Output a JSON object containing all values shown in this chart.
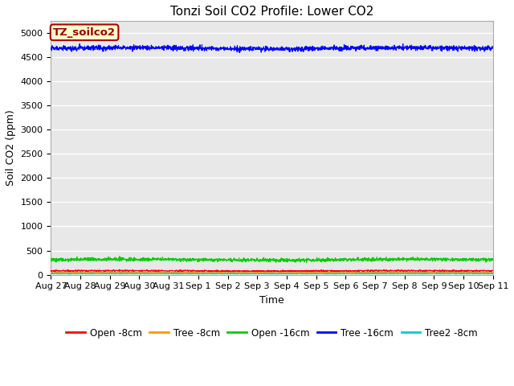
{
  "title": "Tonzi Soil CO2 Profile: Lower CO2",
  "ylabel": "Soil CO2 (ppm)",
  "xlabel": "Time",
  "watermark_text": "TZ_soilco2",
  "ylim": [
    0,
    5250
  ],
  "yticks": [
    0,
    500,
    1000,
    1500,
    2000,
    2500,
    3000,
    3500,
    4000,
    4500,
    5000
  ],
  "num_points": 2000,
  "series": {
    "open_8cm": {
      "label": "Open -8cm",
      "color": "#ff0000",
      "mean": 80,
      "noise": 8,
      "lw": 0.8
    },
    "tree_8cm": {
      "label": "Tree -8cm",
      "color": "#ff9900",
      "mean": 45,
      "noise": 5,
      "lw": 0.8
    },
    "open_16cm": {
      "label": "Open -16cm",
      "color": "#00cc00",
      "mean": 310,
      "noise": 18,
      "lw": 0.8
    },
    "tree_16cm": {
      "label": "Tree -16cm",
      "color": "#0000ff",
      "mean": 4680,
      "noise": 25,
      "lw": 0.8
    },
    "tree2_8cm": {
      "label": "Tree2 -8cm",
      "color": "#00cccc",
      "mean": 25,
      "noise": 4,
      "lw": 0.8
    }
  },
  "x_tick_labels": [
    "Aug 27",
    "Aug 28",
    "Aug 29",
    "Aug 30",
    "Aug 31",
    "Sep 1",
    "Sep 2",
    "Sep 3",
    "Sep 4",
    "Sep 5",
    "Sep 6",
    "Sep 7",
    "Sep 8",
    "Sep 9",
    "Sep 10",
    "Sep 11"
  ],
  "fig_facecolor": "#ffffff",
  "ax_facecolor": "#e8e8e8",
  "grid_color": "#ffffff",
  "watermark_bg": "#ffffcc",
  "watermark_border": "#aa0000",
  "title_fontsize": 11,
  "axis_label_fontsize": 9,
  "tick_fontsize": 8,
  "legend_fontsize": 8.5
}
